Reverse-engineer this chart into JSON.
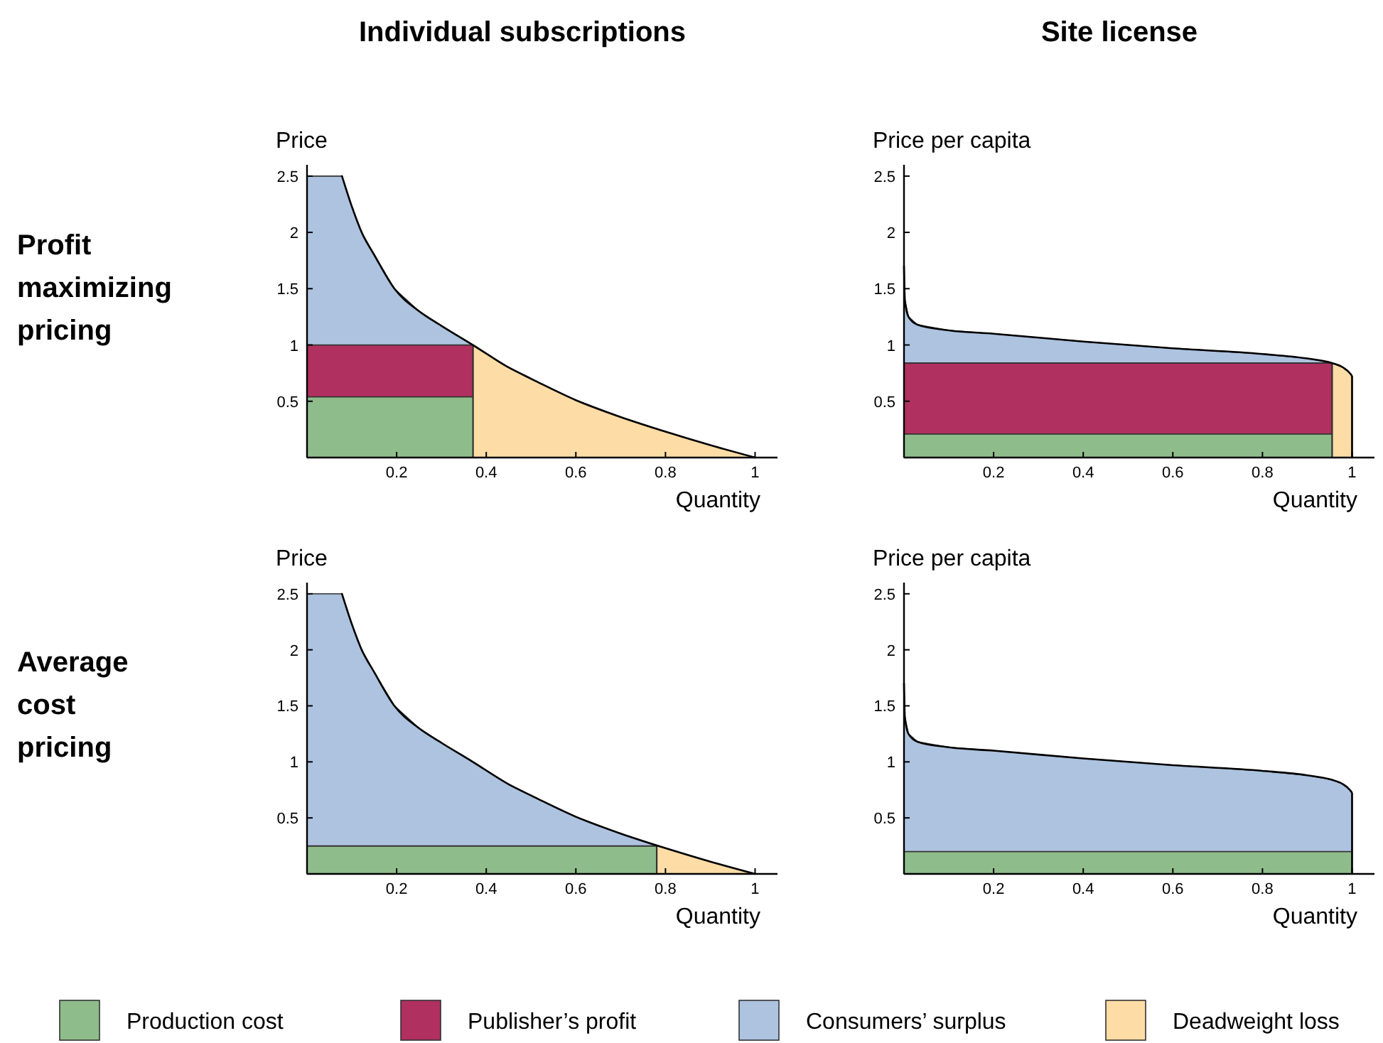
{
  "chart_data": [
    {
      "type": "area",
      "title": "Individual subscriptions",
      "ylabel": "Price",
      "xlabel": "Quantity",
      "annotations": [
        "Profit maximizing pricing"
      ],
      "stacked": true,
      "legend": "bottom",
      "xlim": [
        0,
        1.05
      ],
      "xticks": [
        0.2,
        0.4,
        0.6,
        0.8,
        1
      ],
      "ylim": [
        0,
        2.6
      ],
      "yticks": [
        0.5,
        1,
        1.5,
        2,
        2.5
      ],
      "x": [
        0,
        0.078,
        0.1,
        0.122,
        0.15,
        0.195,
        0.25,
        0.3,
        0.37,
        0.371,
        0.45,
        0.5,
        0.6,
        0.7,
        0.8,
        0.9,
        1
      ],
      "series": [
        {
          "name": "Production cost",
          "color": "#8fbc8b",
          "values": [
            0.54,
            0.54,
            0.54,
            0.54,
            0.54,
            0.54,
            0.54,
            0.54,
            0.54,
            null,
            null,
            null,
            null,
            null,
            null,
            null,
            null
          ]
        },
        {
          "name": "Publisher’s profit",
          "color": "#b03060",
          "values": [
            0.46,
            0.46,
            0.46,
            0.46,
            0.46,
            0.46,
            0.46,
            0.46,
            0.46,
            null,
            null,
            null,
            null,
            null,
            null,
            null,
            null
          ]
        },
        {
          "name": "Consumers’ surplus",
          "color": "#adc3e0",
          "values": [
            1.5,
            1.5,
            1.23,
            1.0,
            0.8,
            0.5,
            0.3,
            0.17,
            0,
            null,
            null,
            null,
            null,
            null,
            null,
            null,
            null
          ]
        },
        {
          "name": "Deadweight loss",
          "color": "#fddca6",
          "values": [
            null,
            null,
            null,
            null,
            null,
            null,
            null,
            null,
            null,
            1.0,
            0.8,
            0.7,
            0.51,
            0.36,
            0.23,
            0.11,
            0
          ]
        },
        {
          "type": "line",
          "color": "#000000",
          "x": [
            0.078,
            0.1,
            0.122,
            0.15,
            0.195,
            0.25,
            0.3,
            0.37,
            0.45,
            0.5,
            0.6,
            0.7,
            0.8,
            0.9,
            1
          ],
          "values": [
            2.5,
            2.23,
            2.0,
            1.8,
            1.5,
            1.3,
            1.17,
            1.0,
            0.8,
            0.7,
            0.51,
            0.36,
            0.23,
            0.11,
            0
          ]
        }
      ]
    },
    {
      "type": "area",
      "title": "Site license",
      "ylabel": "Price per capita",
      "xlabel": "Quantity",
      "stacked": true,
      "legend": "bottom",
      "xlim": [
        0,
        1.05
      ],
      "xticks": [
        0.2,
        0.4,
        0.6,
        0.8,
        1
      ],
      "ylim": [
        0,
        2.6
      ],
      "yticks": [
        0.5,
        1,
        1.5,
        2,
        2.5
      ],
      "x": [
        0,
        0.002,
        0.01,
        0.03,
        0.1,
        0.2,
        0.4,
        0.6,
        0.8,
        0.9,
        0.955,
        0.956,
        0.98,
        0.995,
        1
      ],
      "series": [
        {
          "name": "Production cost",
          "color": "#8fbc8b",
          "values": [
            0.21,
            0.21,
            0.21,
            0.21,
            0.21,
            0.21,
            0.21,
            0.21,
            0.21,
            0.21,
            0.21,
            null,
            null,
            null,
            null
          ]
        },
        {
          "name": "Publisher’s profit",
          "color": "#b03060",
          "values": [
            0.63,
            0.63,
            0.63,
            0.63,
            0.63,
            0.63,
            0.63,
            0.63,
            0.63,
            0.63,
            0.63,
            null,
            null,
            null,
            null
          ]
        },
        {
          "name": "Consumers’ surplus",
          "color": "#adc3e0",
          "values": [
            0.86,
            0.56,
            0.41,
            0.34,
            0.29,
            0.26,
            0.19,
            0.13,
            0.08,
            0.04,
            0,
            null,
            null,
            null,
            null
          ]
        },
        {
          "name": "Deadweight loss",
          "color": "#fddca6",
          "values": [
            null,
            null,
            null,
            null,
            null,
            null,
            null,
            null,
            null,
            null,
            null,
            0.84,
            0.8,
            0.75,
            0.72
          ]
        },
        {
          "type": "line",
          "color": "#000000",
          "x": [
            0,
            0.002,
            0.01,
            0.03,
            0.1,
            0.2,
            0.4,
            0.6,
            0.8,
            0.9,
            0.955,
            0.98,
            0.995,
            1,
            1
          ],
          "values": [
            1.7,
            1.4,
            1.25,
            1.18,
            1.13,
            1.1,
            1.03,
            0.97,
            0.92,
            0.88,
            0.84,
            0.8,
            0.75,
            0.72,
            0
          ]
        }
      ]
    },
    {
      "type": "area",
      "ylabel": "Price",
      "xlabel": "Quantity",
      "annotations": [
        "Average cost pricing"
      ],
      "stacked": true,
      "legend": "bottom",
      "xlim": [
        0,
        1.05
      ],
      "xticks": [
        0.2,
        0.4,
        0.6,
        0.8,
        1
      ],
      "ylim": [
        0,
        2.6
      ],
      "yticks": [
        0.5,
        1,
        1.5,
        2,
        2.5
      ],
      "x": [
        0,
        0.078,
        0.1,
        0.122,
        0.15,
        0.195,
        0.25,
        0.3,
        0.37,
        0.45,
        0.5,
        0.6,
        0.7,
        0.78,
        0.781,
        0.8,
        0.9,
        1
      ],
      "series": [
        {
          "name": "Production cost",
          "color": "#8fbc8b",
          "values": [
            0.25,
            0.25,
            0.25,
            0.25,
            0.25,
            0.25,
            0.25,
            0.25,
            0.25,
            0.25,
            0.25,
            0.25,
            0.25,
            0.25,
            null,
            null,
            null,
            null
          ]
        },
        {
          "name": "Consumers’ surplus",
          "color": "#adc3e0",
          "values": [
            2.25,
            2.25,
            1.98,
            1.75,
            1.55,
            1.25,
            1.05,
            0.92,
            0.75,
            0.55,
            0.45,
            0.26,
            0.11,
            0,
            null,
            null,
            null,
            null
          ]
        },
        {
          "name": "Deadweight loss",
          "color": "#fddca6",
          "values": [
            null,
            null,
            null,
            null,
            null,
            null,
            null,
            null,
            null,
            null,
            null,
            null,
            null,
            null,
            0.25,
            0.23,
            0.11,
            0
          ]
        },
        {
          "type": "line",
          "color": "#000000",
          "x": [
            0.078,
            0.1,
            0.122,
            0.15,
            0.195,
            0.25,
            0.3,
            0.37,
            0.45,
            0.5,
            0.6,
            0.7,
            0.8,
            0.9,
            1
          ],
          "values": [
            2.5,
            2.23,
            2.0,
            1.8,
            1.5,
            1.3,
            1.17,
            1.0,
            0.8,
            0.7,
            0.51,
            0.36,
            0.23,
            0.11,
            0
          ]
        }
      ]
    },
    {
      "type": "area",
      "ylabel": "Price per capita",
      "xlabel": "Quantity",
      "stacked": true,
      "legend": "bottom",
      "xlim": [
        0,
        1.05
      ],
      "xticks": [
        0.2,
        0.4,
        0.6,
        0.8,
        1
      ],
      "ylim": [
        0,
        2.6
      ],
      "yticks": [
        0.5,
        1,
        1.5,
        2,
        2.5
      ],
      "x": [
        0,
        0.002,
        0.01,
        0.03,
        0.1,
        0.2,
        0.4,
        0.6,
        0.8,
        0.9,
        0.955,
        0.98,
        0.995,
        1
      ],
      "series": [
        {
          "name": "Production cost",
          "color": "#8fbc8b",
          "values": [
            0.2,
            0.2,
            0.2,
            0.2,
            0.2,
            0.2,
            0.2,
            0.2,
            0.2,
            0.2,
            0.2,
            0.2,
            0.2,
            0.2
          ]
        },
        {
          "name": "Consumers’ surplus",
          "color": "#adc3e0",
          "values": [
            1.5,
            1.2,
            1.05,
            0.98,
            0.93,
            0.9,
            0.83,
            0.77,
            0.72,
            0.68,
            0.64,
            0.6,
            0.55,
            0.52
          ]
        },
        {
          "type": "line",
          "color": "#000000",
          "x": [
            0,
            0.002,
            0.01,
            0.03,
            0.1,
            0.2,
            0.4,
            0.6,
            0.8,
            0.9,
            0.955,
            0.98,
            0.995,
            1,
            1
          ],
          "values": [
            1.7,
            1.4,
            1.25,
            1.18,
            1.13,
            1.1,
            1.03,
            0.97,
            0.92,
            0.88,
            0.84,
            0.8,
            0.75,
            0.72,
            0
          ]
        }
      ]
    }
  ]
}
